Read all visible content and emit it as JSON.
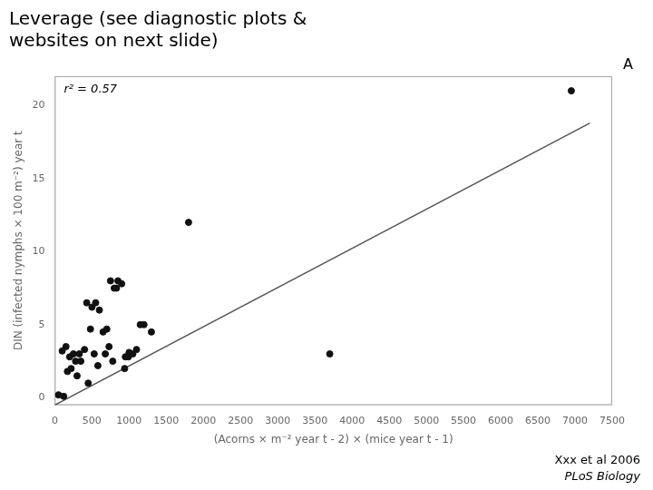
{
  "chart_data": {
    "type": "scatter",
    "title": [
      "Leverage (see diagnostic plots &",
      "websites on next slide)"
    ],
    "x_label": "(Acorns × m⁻² year t - 2) × (mice year t - 1)",
    "y_label": "DIN (infected nymphs × 100 m⁻²) year t",
    "annotations": [
      "r² = 0.57",
      "A",
      "Xxx et al 2006",
      "PLoS Biology"
    ],
    "xlim": [
      0,
      7500
    ],
    "ylim": [
      -0.5,
      22
    ],
    "xticks": [
      0,
      500,
      1000,
      1500,
      2000,
      2500,
      3000,
      3500,
      4000,
      4500,
      5000,
      5500,
      6000,
      6500,
      7000,
      7500
    ],
    "yticks": [
      0,
      5,
      10,
      15,
      20
    ],
    "grid": false,
    "series": [
      {
        "type": "scatter",
        "color": "#111111",
        "marker": "circle",
        "x": [
          50,
          100,
          150,
          200,
          250,
          300,
          350,
          400,
          450,
          500,
          550,
          600,
          650,
          700,
          750,
          800,
          850,
          900,
          950,
          1000,
          1050,
          1100,
          1150,
          1200,
          1300,
          1800,
          3700,
          6950,
          120,
          170,
          220,
          280,
          330,
          430,
          480,
          530,
          580,
          680,
          730,
          780,
          830,
          940,
          990
        ],
        "values": [
          0.2,
          3.2,
          3.5,
          2.8,
          3.0,
          1.5,
          2.5,
          3.3,
          1.0,
          6.2,
          6.5,
          6.0,
          4.5,
          4.7,
          8.0,
          7.5,
          8.0,
          7.8,
          2.8,
          3.1,
          3.0,
          3.3,
          5.0,
          5.0,
          4.5,
          12.0,
          3.0,
          21.0,
          0.1,
          1.8,
          2.0,
          2.5,
          3.0,
          6.5,
          4.7,
          3.0,
          2.2,
          3.0,
          3.5,
          2.5,
          7.5,
          2.0,
          2.8
        ]
      },
      {
        "type": "line",
        "color": "#555555",
        "line_style": "solid",
        "x": [
          0,
          7200
        ],
        "values": [
          -0.5,
          18.8
        ]
      }
    ]
  }
}
